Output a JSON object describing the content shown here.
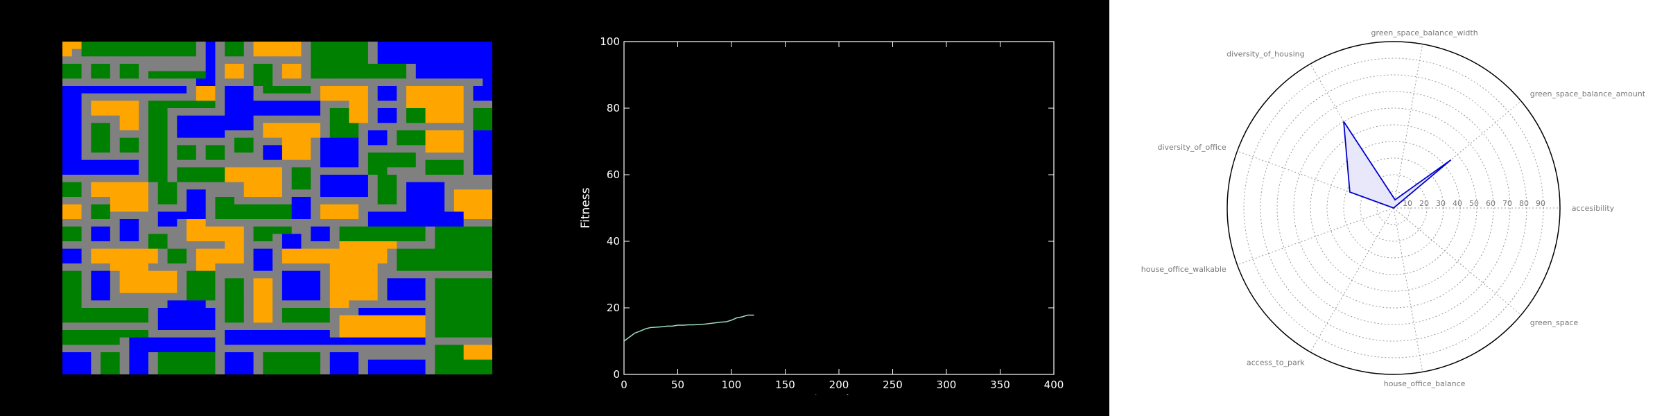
{
  "colors": {
    "grid_road": "#808080",
    "grid_house": "#ffa500",
    "grid_office": "#0000ff",
    "grid_green": "#008000",
    "line_series": "#a0e0c0",
    "radar_line": "#0000cc",
    "radar_fill": "#e6e6fa"
  },
  "grid_map": {
    "legend": {
      "G": "road",
      "O": "house",
      "B": "office",
      "N": "green"
    },
    "rows": [
      "OONNNNNNNNNNNNGBGNNGOOOOOGNNNNNNGBBBBBBBBBBBB",
      "OGNNNNNNNNNNNNGBGNNGOOOOOGNNNNNNGBBBBBBBBBBBB",
      "GGGGGGGGGGGGGGGBGGGGGGGGGGNNNNNNGBBBBBBBBBBBB",
      "NNGNNGNNGGGGGGGBGOOGNNGOOGNNNNNNNNNNGBBBBBBBB",
      "NNGNNGNNGNNNNNNBGOOGNNGOOGNNNNNNNNNNGBBBBBBBB",
      "GGGGGGGGGGGGGGBBGGGGNNGGGGGGGGGGGGGGGGGGGGGGB",
      "BBBBBBBBBBBBBGOOGBBBGNNNNNGOOOOOGBBGOOOOOOGBB",
      "BBGGGGGGGGGGGGOOGBBBGGGGGGGOOOOOGBBGOOOOOOGBB",
      "BBGOOOOOGNNNNNNNGBBBBBBBBBBGGGOOGGGGOOOOOOGGG",
      "BBGOOOOOGNNGGGGGGBBBBBBBBBBGNNOOGBBGNNOOOOGNN",
      "BBGGGGOOGNNGBBBBBBBBGGGGGGGGNNOOGBBGNNOOOOGNN",
      "BBGNNGOOGNNGBBBBBBBBGOOOOOOGNNNGGGGGGGGGGGGNN",
      "BBGNNGGGGNNGBBBBBGGGGOOOOOOGNNNGBBGNNNOOOOGBB",
      "BBGNNGNNGNNGGGGGGGNNGGGOOOGBBBBGBBGNNNOOOOGBB",
      "BBGNNGNNGNNGNNGNNGNNGBBOOOGBBBBGGGGGGGOOOOGBB",
      "BBGGGGGGGNNGNNGNNGGGGBBOOOGBBBBGNNNNNGGGGGGBB",
      "BBBBBBBBGNNGGGGGGGGGGGGGGGGBBBBGNNNNNGNNNNGBB",
      "BBBBBBBBGNNGNNNNNOOOOOOGNNGGGGGGNNGGGGNNNNGBB",
      "GGGGGGGGGNNGNNNNNOOOOOOGNNGBBBBBGNNGGGGGGGGGG",
      "NNGOOOOOOGNNGGGGGGGOOOOGNNGBBBBBGNNGBBBBGGGGG",
      "NNGOOOOOOGNNGBBGGGGOOOOGGGGBBBBBGNNGBBBBGOOOO",
      "GGGGGOOOOGNNGBBGNNGGGGGGBBGGGGGGGNNGBBBBGOOOO",
      "OOGNNOOOOGGGGBBGNNNNNNNNBBGOOOOGGGGGBBBBGOOOO",
      "OOGNNGGGGGBBBBBGNNNNNNNNBBGOOOOGBBBBBBBBBBOOO",
      "GGGGGGBBGGBBGOOGGGGGGGGGGGGGGGGGBBBBBBBBBBGGG",
      "NNGBBGBBGGGGGOOOOOOGNNNNGGBBGNNNNNNNNNGNNNNNN",
      "NNGBBGBBGNNGGOOOOOOGNNGBBGBBGNNNNNNNNNGNNNNNN",
      "GGGGGGGGGNNGGGGGGOOGGGGBBGGGGOOOOOOGGGGNNNNNN",
      "BBGOOOOOOOGNNGOOOOOGBBGOOOOOOOOOOOGNNNNNNNNNN",
      "BBGOOOOOOOGNNGOOOOOGBBGOOOOOOOOOOOGNNNNNNNNNN",
      "GGGGGOOOOGGGGGOOGGGGBBGGGGGGOOOOOGGNNNNNNNNNN",
      "NNGBBGOOOOOOGNNNGGGGGGGBBBBGOOOOOGGGGGGGGGGGG",
      "NNGBBGOOOOOOGNNNGNNGOOGBBBBGOOOOOGBBBBGNNNNNN",
      "NNGBBGOOOOOOGNNNGNNGOOGBBBBGOOOOOGBBBBGNNNNNN",
      "NNGBBGGGGGGGGNNNGNNGOOGBBBBGOOOOOGBBBBGNNNNNN",
      "NNGGGGGGGGGBBBBGGNNGOOGGGGGGOOGGGGGGGGGNNNNNN",
      "NNNNNNNNNGBBBBBBGNNGOOGNNNNNGGGBBBBBBBGNNNNNN",
      "NNNNNNNNNGBBBBBBGNNGOOGNNNNNGOOOOOOOOOGNNNNNN",
      "GGGGGGGGGGBBBBBBGGGGGGGGGGGGGOOOOOOOOOGNNNNNN",
      "NNNNNNNNNGGGGGGGGBBBBBBBBBBBGOOOOOOOOOGNNNNNN",
      "NNNNNNGBBBBBBBBBGBBBBBBBBBBBBBBBBBBBBBGGGGGGG",
      "GGGGGGGBBBBBBBBBGGGGGGGGGGGGGGGGGGGGGGGNNNOOO",
      "BBBGNNGBBGNNNNNNGBBBGNNNNNNGBBBGGGGGGGGNNNOOO",
      "BBBGNNGBBGNNNNNNGBBBGNNNNNNGBBBGBBBBBBGNNNNNN",
      "BBBGNNGBBGNNNNNNGBBBGNNNNNNGBBBGBBBBBBGNNNNNN"
    ]
  },
  "chart_data": [
    {
      "type": "line",
      "title": "",
      "xlabel": "Iteration",
      "ylabel": "Fitness",
      "xlim": [
        0,
        400
      ],
      "ylim": [
        0,
        100
      ],
      "x_ticks": [
        "0",
        "50",
        "100",
        "150",
        "200",
        "250",
        "300",
        "350",
        "400"
      ],
      "y_ticks": [
        "0",
        "20",
        "40",
        "60",
        "80",
        "100"
      ],
      "grid": false,
      "series": [
        {
          "values": [
            [
              0,
              10.0
            ],
            [
              5,
              11.2
            ],
            [
              10,
              12.4
            ],
            [
              15,
              13.0
            ],
            [
              20,
              13.7
            ],
            [
              25,
              14.1
            ],
            [
              30,
              14.2
            ],
            [
              35,
              14.3
            ],
            [
              40,
              14.5
            ],
            [
              45,
              14.5
            ],
            [
              50,
              14.8
            ],
            [
              55,
              14.8
            ],
            [
              60,
              14.9
            ],
            [
              65,
              14.9
            ],
            [
              70,
              15.0
            ],
            [
              75,
              15.1
            ],
            [
              80,
              15.3
            ],
            [
              85,
              15.5
            ],
            [
              90,
              15.7
            ],
            [
              95,
              15.8
            ],
            [
              100,
              16.3
            ],
            [
              105,
              17.0
            ],
            [
              110,
              17.3
            ],
            [
              115,
              17.8
            ],
            [
              121,
              17.8
            ]
          ]
        }
      ]
    },
    {
      "type": "radar",
      "axes": [
        "accesibility",
        "green_space_balance_amount",
        "green_space_balance_width",
        "diversity_of_housing",
        "diversity_of_office",
        "house_office_walkable",
        "access_to_park",
        "house_office_balance",
        "green_space"
      ],
      "radial_ticks": [
        "10",
        "20",
        "30",
        "40",
        "50",
        "60",
        "70",
        "80",
        "90"
      ],
      "rmax": 100,
      "grid": true,
      "series": [
        {
          "values": [
            0,
            45,
            5,
            60,
            28,
            0,
            0,
            0,
            0
          ]
        }
      ]
    }
  ]
}
